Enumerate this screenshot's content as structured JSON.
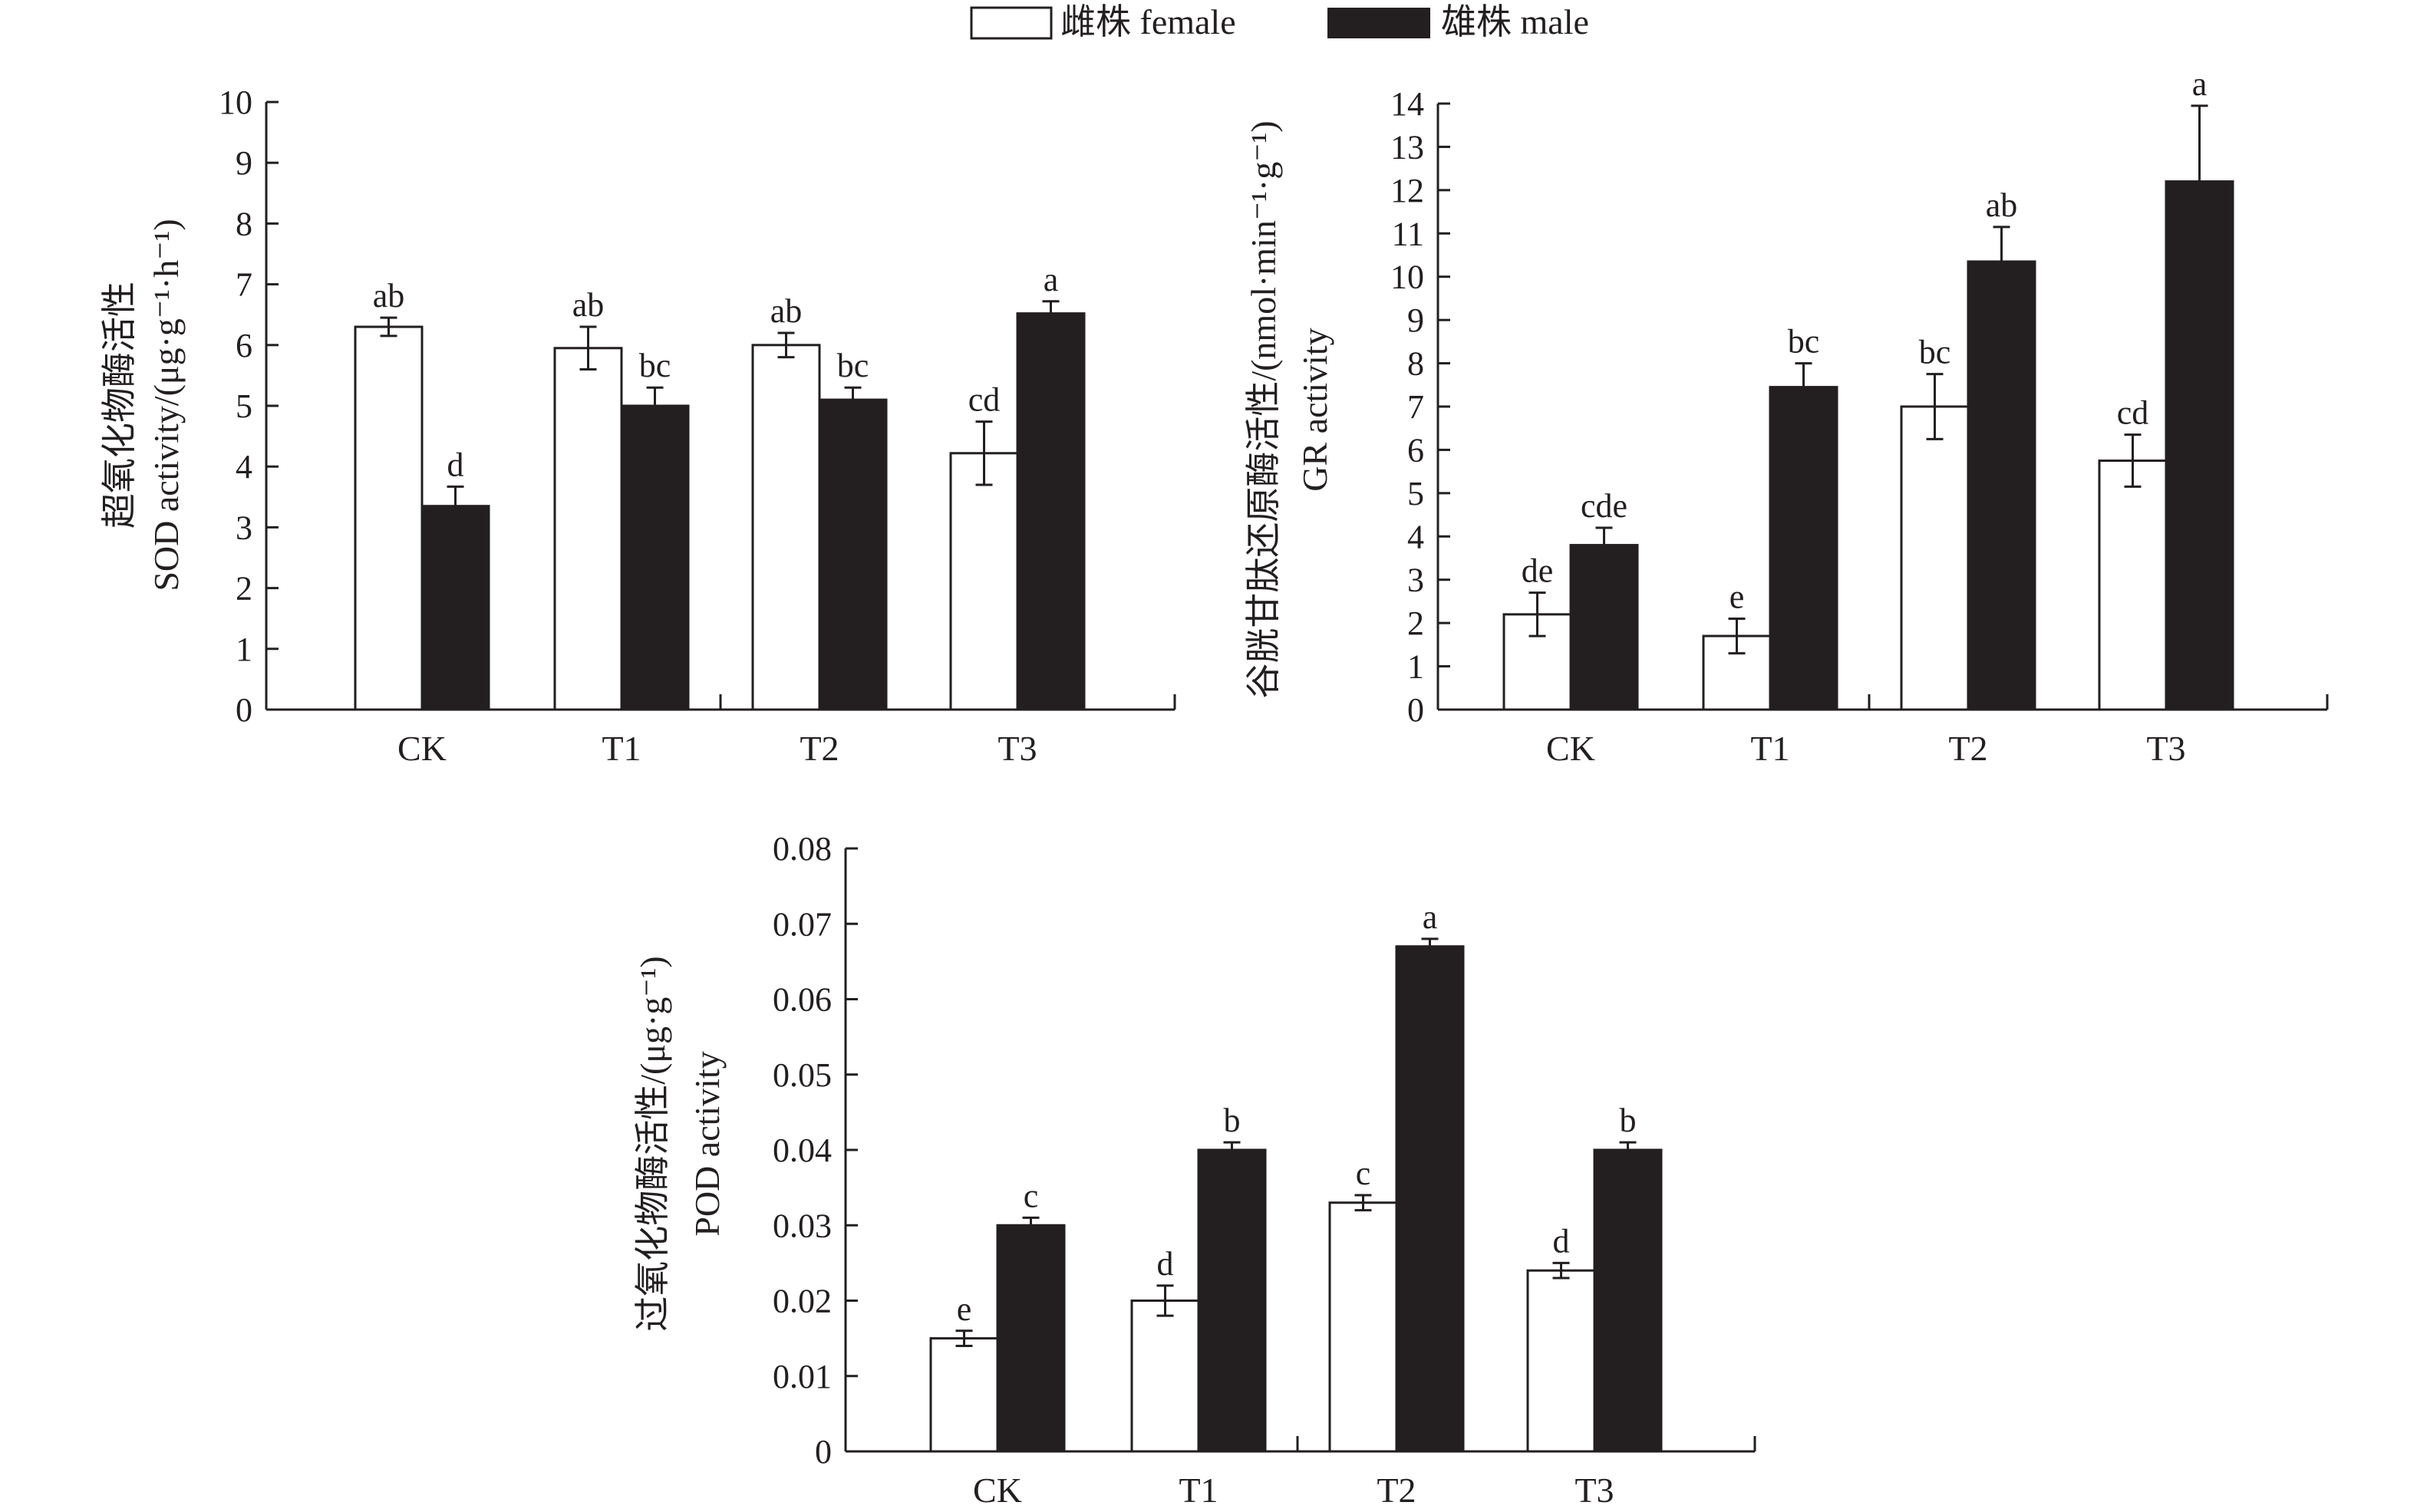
{
  "legend": [
    {
      "label": "雌株 female",
      "color": "#ffffff"
    },
    {
      "label": "雄株 male",
      "color": "#231f20"
    }
  ],
  "chart_data": [
    {
      "type": "bar",
      "title": "",
      "ylabel_lines": [
        "超氧化物酶活性",
        "SOD activity/(μg·g⁻¹·h⁻¹)"
      ],
      "categories": [
        "CK",
        "T1",
        "T2",
        "T3"
      ],
      "ylim": [
        0,
        10
      ],
      "yticks": [
        "0",
        "1",
        "2",
        "3",
        "4",
        "5",
        "6",
        "7",
        "8",
        "9",
        "10"
      ],
      "series": [
        {
          "name": "雌株 female",
          "values": [
            6.3,
            5.95,
            6.0,
            4.22
          ],
          "errors": [
            0.15,
            0.35,
            0.2,
            0.52
          ],
          "letters": [
            "ab",
            "ab",
            "ab",
            "cd"
          ]
        },
        {
          "name": "雄株 male",
          "values": [
            3.35,
            5.0,
            5.1,
            6.52
          ],
          "errors": [
            0.32,
            0.3,
            0.2,
            0.2
          ],
          "letters": [
            "d",
            "bc",
            "bc",
            "a"
          ]
        }
      ]
    },
    {
      "type": "bar",
      "title": "",
      "ylabel_lines": [
        "谷胱甘肽还原酶活性/(nmol·min⁻¹·g⁻¹)",
        "GR activity"
      ],
      "categories": [
        "CK",
        "T1",
        "T2",
        "T3"
      ],
      "ylim": [
        0,
        14
      ],
      "yticks": [
        "0",
        "1",
        "2",
        "3",
        "4",
        "5",
        "6",
        "7",
        "8",
        "9",
        "10",
        "11",
        "12",
        "13",
        "14"
      ],
      "series": [
        {
          "name": "雌株 female",
          "values": [
            2.2,
            1.7,
            7.0,
            5.75
          ],
          "errors": [
            0.5,
            0.4,
            0.75,
            0.6
          ],
          "letters": [
            "de",
            "e",
            "bc",
            "cd"
          ]
        },
        {
          "name": "雄株 male",
          "values": [
            3.8,
            7.45,
            10.35,
            12.2
          ],
          "errors": [
            0.4,
            0.55,
            0.8,
            1.75
          ],
          "letters": [
            "cde",
            "bc",
            "ab",
            "a"
          ]
        }
      ]
    },
    {
      "type": "bar",
      "title": "",
      "ylabel_lines": [
        "过氧化物酶活性/(μg·g⁻¹)",
        "POD activity"
      ],
      "categories": [
        "CK",
        "T1",
        "T2",
        "T3"
      ],
      "ylim": [
        0,
        0.08
      ],
      "yticks": [
        "0",
        "0.01",
        "0.02",
        "0.03",
        "0.04",
        "0.05",
        "0.06",
        "0.07",
        "0.08"
      ],
      "series": [
        {
          "name": "雌株 female",
          "values": [
            0.015,
            0.02,
            0.033,
            0.024
          ],
          "errors": [
            0.001,
            0.002,
            0.001,
            0.001
          ],
          "letters": [
            "e",
            "d",
            "c",
            "d"
          ]
        },
        {
          "name": "雄株 male",
          "values": [
            0.03,
            0.04,
            0.067,
            0.04
          ],
          "errors": [
            0.001,
            0.001,
            0.001,
            0.001
          ],
          "letters": [
            "c",
            "b",
            "a",
            "b"
          ]
        }
      ]
    }
  ]
}
